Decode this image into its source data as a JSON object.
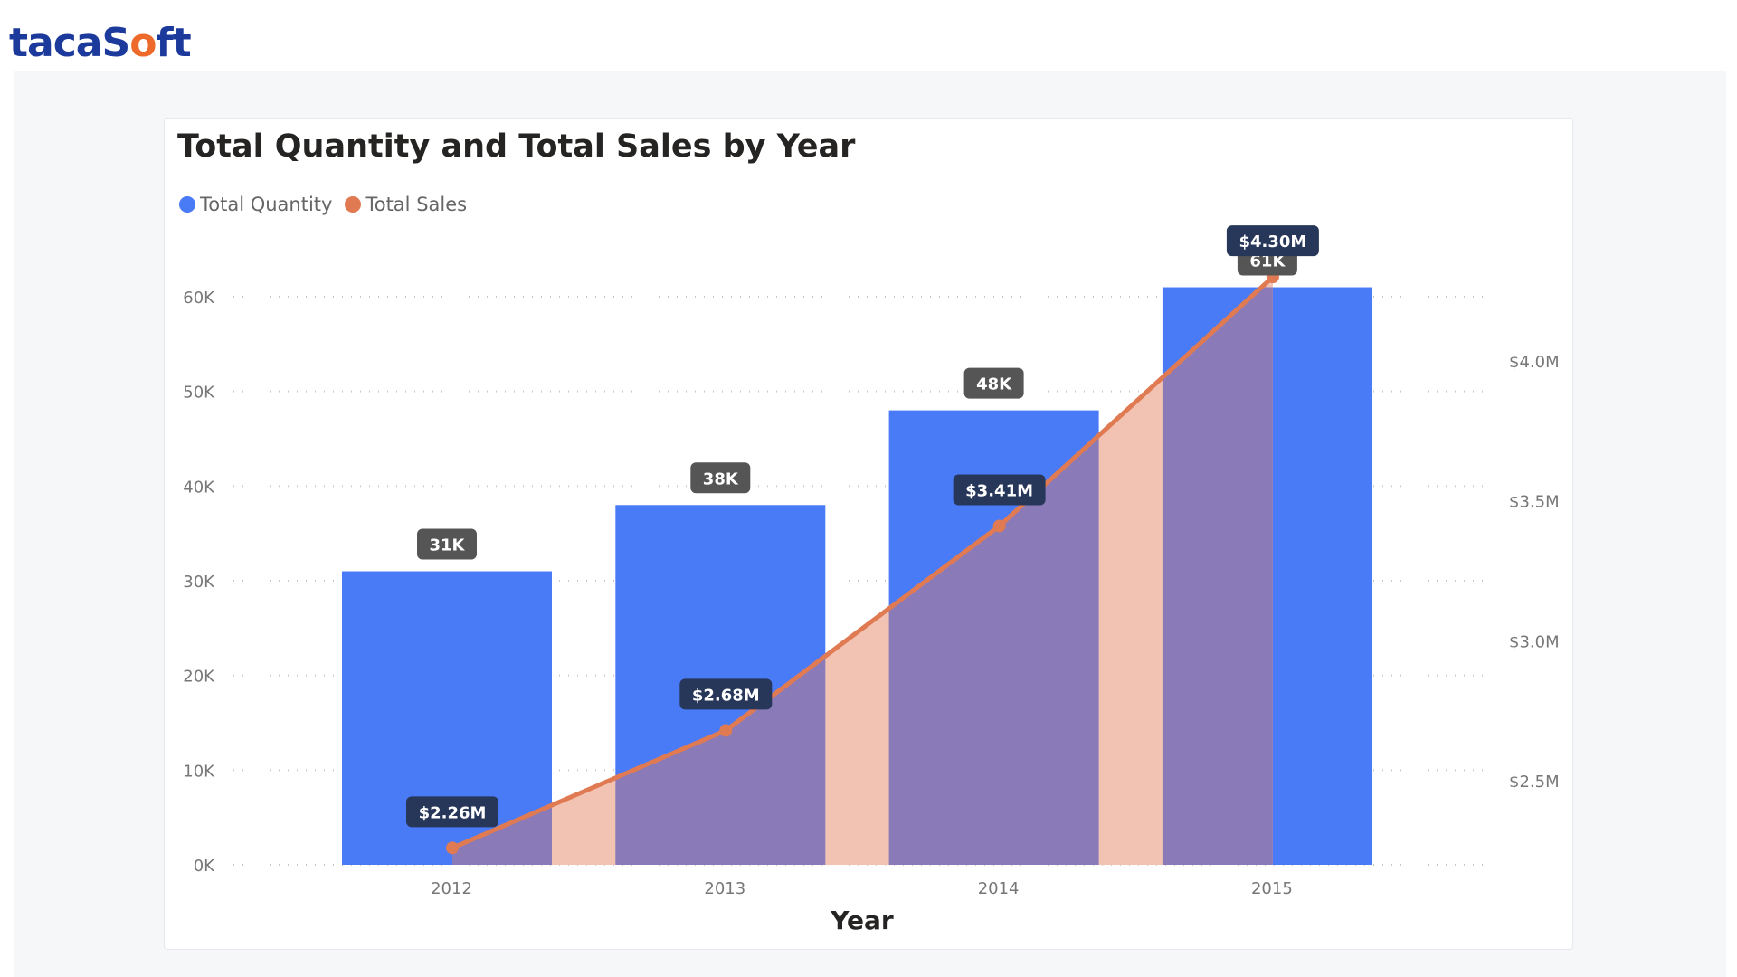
{
  "brand": {
    "logo_text": "tacaSoft",
    "logo_prefix": "tacaS",
    "logo_o": "o",
    "logo_suffix": "ft"
  },
  "chart_data": {
    "type": "bar",
    "title": "Total Quantity and Total Sales by Year",
    "xlabel": "Year",
    "ylabel": "",
    "categories": [
      "2012",
      "2013",
      "2014",
      "2015"
    ],
    "series": [
      {
        "name": "Total Quantity",
        "type": "bar",
        "axis": "left",
        "values": [
          31000,
          38000,
          48000,
          61000
        ],
        "labels": [
          "31K",
          "38K",
          "48K",
          "61K"
        ],
        "color": "#4a7bf7"
      },
      {
        "name": "Total Sales",
        "type": "area-line",
        "axis": "right",
        "values": [
          2.26,
          2.68,
          3.41,
          4.3
        ],
        "labels": [
          "$2.26M",
          "$2.68M",
          "$3.41M",
          "$4.30M"
        ],
        "color": "#e07a52",
        "area_color": "#f2c3b3",
        "overlap_color": "#8a7ab8"
      }
    ],
    "y_left": {
      "ylim": [
        0,
        60000
      ],
      "ticks": [
        0,
        10000,
        20000,
        30000,
        40000,
        50000,
        60000
      ],
      "tick_labels": [
        "0K",
        "10K",
        "20K",
        "30K",
        "40K",
        "50K",
        "60K"
      ]
    },
    "y_right": {
      "ticks": [
        2.5,
        3.0,
        3.5,
        4.0
      ],
      "tick_labels": [
        "$2.5M",
        "$3.0M",
        "$3.5M",
        "$4.0M"
      ]
    },
    "grid": true,
    "legend": "top-left"
  }
}
